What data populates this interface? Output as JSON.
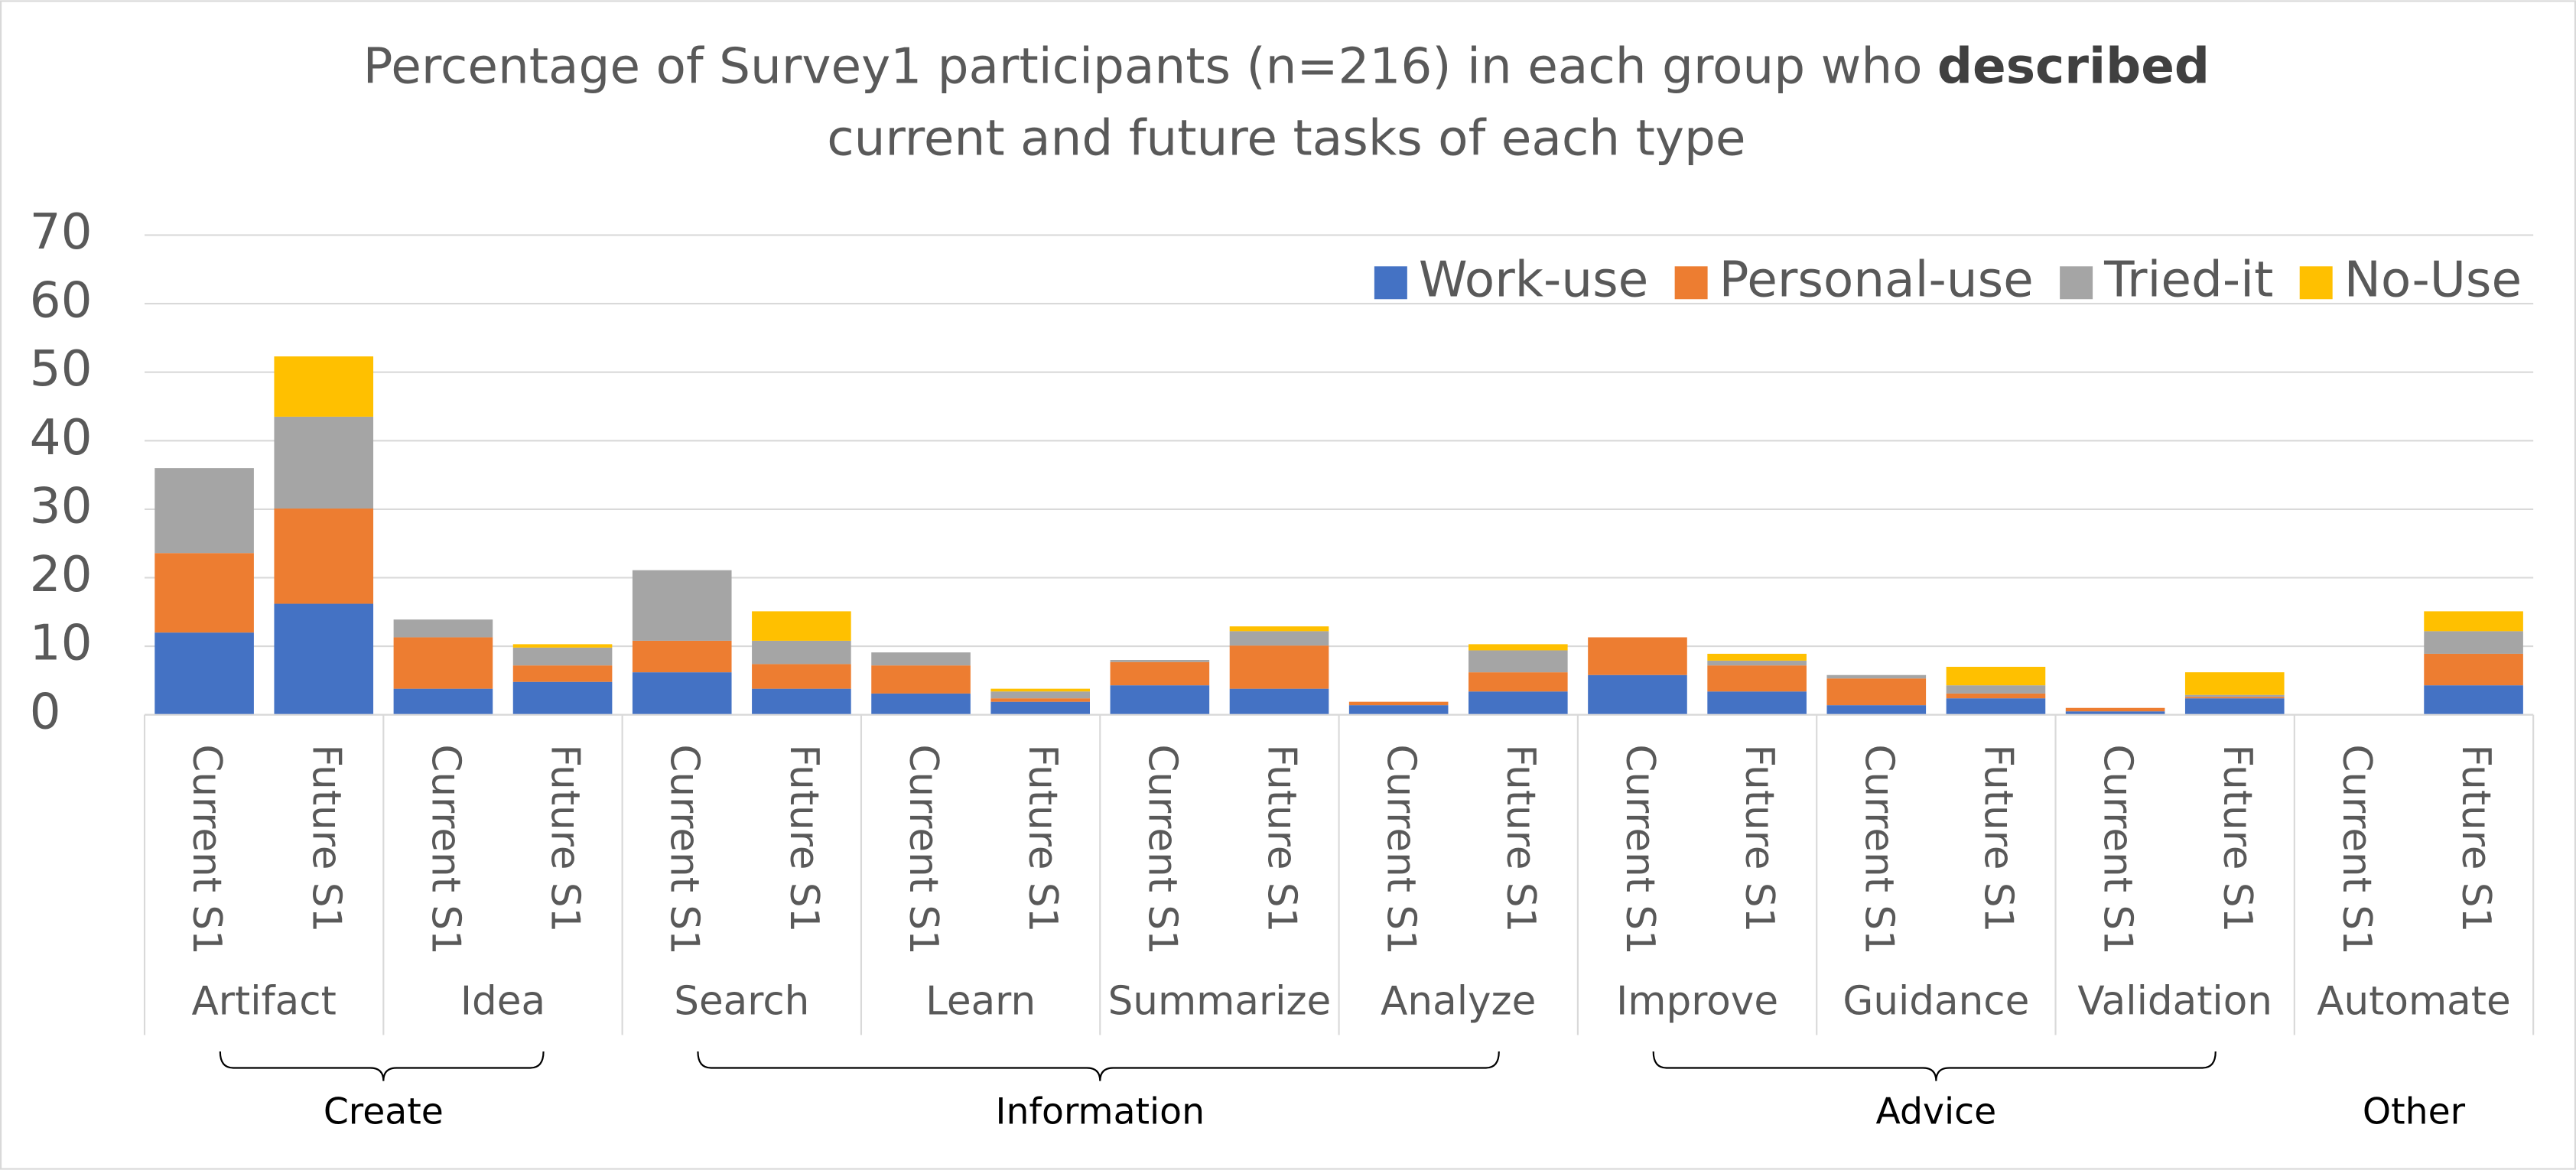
{
  "chart_data": {
    "type": "stacked_bar",
    "title": {
      "line1": "Percentage of Survey1 participants (n=216) in each group who",
      "emphasis": "described",
      "line2": "current and future tasks of each type"
    },
    "groups": [
      {
        "name": "Create",
        "subgroups": [
          "Artifact",
          "Idea"
        ]
      },
      {
        "name": "Information",
        "subgroups": [
          "Search",
          "Learn",
          "Summarize",
          "Analyze"
        ]
      },
      {
        "name": "Advice",
        "subgroups": [
          "Improve",
          "Guidance",
          "Validation"
        ]
      },
      {
        "name": "Other",
        "subgroups": [
          "Automate"
        ]
      }
    ],
    "categories": [
      "Current S1",
      "Future S1",
      "Current S1",
      "Future S1",
      "Current S1",
      "Future S1",
      "Current S1",
      "Future S1",
      "Current S1",
      "Future S1",
      "Current S1",
      "Future S1",
      "Current S1",
      "Future S1",
      "Current S1",
      "Future S1",
      "Current S1",
      "Future S1",
      "Current S1",
      "Future S1"
    ],
    "series": [
      {
        "name": "Work-use",
        "color": "#4472c4",
        "values": [
          12,
          16.2,
          3.8,
          4.8,
          6.2,
          3.8,
          3.1,
          1.9,
          4.3,
          3.8,
          1.4,
          3.4,
          5.8,
          3.4,
          1.4,
          2.4,
          0.5,
          2.4,
          0,
          4.3
        ]
      },
      {
        "name": "Personal-use",
        "color": "#ed7d31",
        "values": [
          11.6,
          13.9,
          7.5,
          2.4,
          4.6,
          3.6,
          4.1,
          0.5,
          3.4,
          6.3,
          0.5,
          2.8,
          5.5,
          3.8,
          3.9,
          0.7,
          0.5,
          0.2,
          0,
          4.6
        ]
      },
      {
        "name": "Tried-it",
        "color": "#a5a5a5",
        "values": [
          12.4,
          13.4,
          2.6,
          2.6,
          10.3,
          3.4,
          1.9,
          1,
          0.3,
          2.1,
          0,
          3.2,
          0,
          0.7,
          0.5,
          1.2,
          0,
          0.3,
          0,
          3.3
        ]
      },
      {
        "name": "No-Use",
        "color": "#ffc000",
        "values": [
          0,
          8.8,
          0,
          0.5,
          0,
          4.3,
          0,
          0.4,
          0,
          0.7,
          0,
          0.9,
          0,
          1,
          0,
          2.7,
          0,
          3.3,
          0,
          2.9
        ]
      }
    ],
    "ylim": [
      0,
      70
    ],
    "yticks": [
      0,
      10,
      20,
      30,
      40,
      50,
      60,
      70
    ],
    "grid": true,
    "legend": "top-right"
  }
}
